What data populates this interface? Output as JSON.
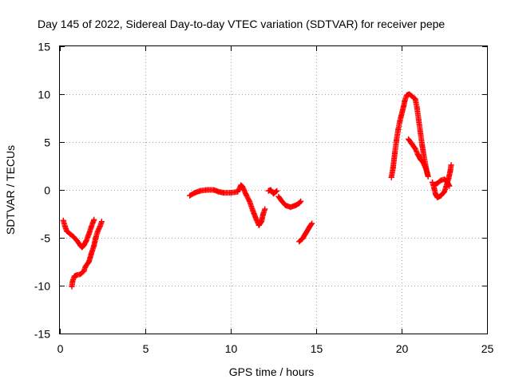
{
  "chart_data": {
    "type": "scatter",
    "title": "Day 145 of 2022, Sidereal Day-to-day VTEC variation (SDTVAR) for receiver pepe",
    "xlabel": "GPS time / hours",
    "ylabel": "SDTVAR / TECUs",
    "xlim": [
      0,
      25
    ],
    "ylim": [
      -15,
      15
    ],
    "xticks": [
      "0",
      "5",
      "10",
      "15",
      "20",
      "25"
    ],
    "yticks": [
      "-15",
      "-10",
      "-5",
      "0",
      "5",
      "10",
      "15"
    ],
    "grid": true,
    "marker": "+",
    "color": "#ff0000",
    "segments": [
      [
        [
          0.2,
          -3.2
        ],
        [
          0.3,
          -3.8
        ],
        [
          0.4,
          -4.3
        ],
        [
          0.6,
          -4.6
        ],
        [
          0.8,
          -4.9
        ],
        [
          1.0,
          -5.3
        ],
        [
          1.2,
          -5.8
        ],
        [
          1.3,
          -6.0
        ],
        [
          1.4,
          -5.8
        ],
        [
          1.55,
          -5.3
        ],
        [
          1.7,
          -4.6
        ],
        [
          1.85,
          -3.8
        ],
        [
          2.0,
          -3.1
        ]
      ],
      [
        [
          0.7,
          -10.1
        ],
        [
          0.75,
          -9.5
        ],
        [
          0.85,
          -9.0
        ],
        [
          1.0,
          -8.9
        ],
        [
          1.2,
          -8.8
        ],
        [
          1.4,
          -8.5
        ],
        [
          1.5,
          -8.0
        ],
        [
          1.7,
          -7.5
        ],
        [
          1.85,
          -6.6
        ],
        [
          2.0,
          -5.8
        ],
        [
          2.1,
          -5.0
        ],
        [
          2.2,
          -4.4
        ],
        [
          2.35,
          -3.8
        ],
        [
          2.45,
          -3.3
        ]
      ],
      [
        [
          7.6,
          -0.6
        ],
        [
          7.9,
          -0.3
        ],
        [
          8.2,
          -0.1
        ],
        [
          8.6,
          0.0
        ],
        [
          9.0,
          0.0
        ],
        [
          9.3,
          -0.2
        ],
        [
          9.6,
          -0.3
        ],
        [
          10.0,
          -0.3
        ],
        [
          10.4,
          -0.2
        ],
        [
          10.6,
          0.5
        ],
        [
          10.7,
          0.3
        ],
        [
          10.9,
          -0.5
        ],
        [
          11.1,
          -1.2
        ],
        [
          11.3,
          -2.2
        ],
        [
          11.5,
          -3.1
        ],
        [
          11.65,
          -3.7
        ],
        [
          11.8,
          -3.3
        ],
        [
          11.9,
          -2.5
        ],
        [
          12.0,
          -2.0
        ]
      ],
      [
        [
          12.2,
          -0.1
        ],
        [
          12.35,
          0.0
        ],
        [
          12.5,
          -0.4
        ],
        [
          12.7,
          -0.1
        ]
      ],
      [
        [
          12.8,
          -0.7
        ],
        [
          13.0,
          -1.2
        ],
        [
          13.2,
          -1.6
        ],
        [
          13.5,
          -1.8
        ],
        [
          13.8,
          -1.6
        ],
        [
          14.0,
          -1.4
        ],
        [
          14.1,
          -1.2
        ]
      ],
      [
        [
          14.0,
          -5.4
        ],
        [
          14.2,
          -5.1
        ],
        [
          14.4,
          -4.5
        ],
        [
          14.6,
          -3.9
        ],
        [
          14.75,
          -3.5
        ]
      ],
      [
        [
          19.4,
          1.3
        ],
        [
          19.5,
          2.3
        ],
        [
          19.6,
          3.8
        ],
        [
          19.7,
          5.2
        ],
        [
          19.8,
          6.3
        ],
        [
          19.9,
          7.2
        ],
        [
          20.0,
          7.9
        ],
        [
          20.1,
          8.6
        ],
        [
          20.2,
          9.4
        ],
        [
          20.3,
          9.9
        ],
        [
          20.45,
          10.0
        ],
        [
          20.6,
          9.8
        ],
        [
          20.8,
          9.5
        ],
        [
          20.9,
          8.6
        ],
        [
          21.0,
          7.3
        ],
        [
          21.1,
          6.0
        ],
        [
          21.2,
          4.7
        ],
        [
          21.3,
          3.6
        ],
        [
          21.4,
          2.6
        ],
        [
          21.5,
          1.7
        ],
        [
          21.55,
          1.4
        ]
      ],
      [
        [
          20.4,
          5.3
        ],
        [
          20.6,
          4.8
        ],
        [
          20.8,
          4.3
        ],
        [
          20.95,
          3.7
        ],
        [
          21.1,
          3.2
        ],
        [
          21.25,
          2.9
        ],
        [
          21.4,
          2.3
        ],
        [
          21.5,
          1.8
        ]
      ],
      [
        [
          21.8,
          0.8
        ],
        [
          21.9,
          0.2
        ],
        [
          22.0,
          -0.5
        ],
        [
          22.1,
          -0.8
        ],
        [
          22.3,
          -0.6
        ],
        [
          22.5,
          -0.2
        ],
        [
          22.6,
          0.3
        ],
        [
          22.75,
          1.2
        ],
        [
          22.85,
          2.0
        ],
        [
          22.9,
          2.6
        ]
      ],
      [
        [
          21.9,
          0.5
        ],
        [
          22.1,
          0.7
        ],
        [
          22.3,
          1.0
        ],
        [
          22.5,
          1.1
        ],
        [
          22.65,
          0.9
        ],
        [
          22.8,
          0.4
        ]
      ]
    ]
  }
}
